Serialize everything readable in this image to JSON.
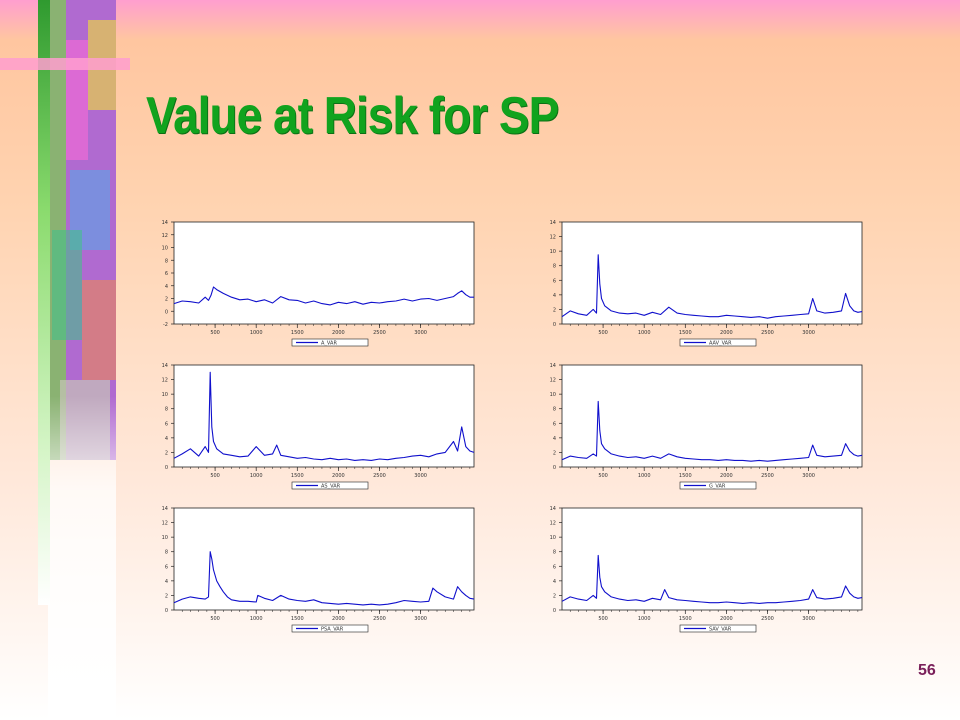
{
  "slide": {
    "title": "Value at Risk for SP",
    "page_number": "56"
  },
  "colors": {
    "title": "#11a31e",
    "series_line": "#1010cc",
    "page_number": "#7a1f5a"
  },
  "chart_data": [
    {
      "type": "line",
      "legend": "A_VAR",
      "legend_position": "bottom-center",
      "grid": false,
      "x_ticks": [
        500,
        1000,
        1500,
        2000,
        2500,
        3000
      ],
      "xlim": [
        0,
        3650
      ],
      "y_ticks": [
        -2,
        0,
        2,
        4,
        6,
        8,
        10,
        12,
        14
      ],
      "ylim": [
        -2,
        14
      ],
      "x": [
        0,
        100,
        200,
        300,
        380,
        420,
        450,
        480,
        520,
        600,
        700,
        800,
        900,
        1000,
        1100,
        1200,
        1300,
        1400,
        1500,
        1600,
        1700,
        1800,
        1900,
        2000,
        2100,
        2200,
        2300,
        2400,
        2500,
        2600,
        2700,
        2800,
        2900,
        3000,
        3100,
        3200,
        3300,
        3400,
        3450,
        3500,
        3550,
        3600,
        3650
      ],
      "y": [
        1.2,
        1.6,
        1.5,
        1.3,
        2.2,
        1.7,
        2.5,
        3.8,
        3.4,
        2.8,
        2.2,
        1.8,
        1.9,
        1.5,
        1.8,
        1.3,
        2.3,
        1.8,
        1.7,
        1.3,
        1.6,
        1.2,
        1.0,
        1.4,
        1.2,
        1.5,
        1.1,
        1.4,
        1.3,
        1.5,
        1.6,
        1.9,
        1.6,
        1.9,
        2.0,
        1.7,
        2.0,
        2.3,
        2.8,
        3.2,
        2.6,
        2.2,
        2.2
      ]
    },
    {
      "type": "line",
      "legend": "AAV_VAR",
      "legend_position": "bottom-center",
      "grid": false,
      "x_ticks": [
        500,
        1000,
        1500,
        2000,
        2500,
        3000
      ],
      "xlim": [
        0,
        3650
      ],
      "y_ticks": [
        0,
        2,
        4,
        6,
        8,
        10,
        12,
        14
      ],
      "ylim": [
        0,
        14
      ],
      "x": [
        0,
        100,
        200,
        300,
        380,
        420,
        440,
        460,
        480,
        520,
        600,
        700,
        800,
        900,
        1000,
        1100,
        1200,
        1300,
        1400,
        1500,
        1600,
        1700,
        1800,
        1900,
        2000,
        2100,
        2200,
        2300,
        2400,
        2500,
        2600,
        2700,
        2800,
        2900,
        3000,
        3050,
        3100,
        3200,
        3300,
        3400,
        3450,
        3500,
        3550,
        3600,
        3650
      ],
      "y": [
        1.0,
        1.8,
        1.4,
        1.2,
        2.0,
        1.5,
        9.5,
        5.5,
        3.5,
        2.5,
        1.8,
        1.5,
        1.4,
        1.5,
        1.2,
        1.6,
        1.3,
        2.3,
        1.5,
        1.3,
        1.2,
        1.1,
        1.0,
        1.0,
        1.2,
        1.1,
        1.0,
        0.9,
        1.0,
        0.8,
        1.0,
        1.1,
        1.2,
        1.3,
        1.4,
        3.5,
        1.8,
        1.5,
        1.6,
        1.8,
        4.2,
        2.5,
        1.8,
        1.6,
        1.7
      ]
    },
    {
      "type": "line",
      "legend": "AS_VAR",
      "legend_position": "bottom-center",
      "grid": false,
      "x_ticks": [
        500,
        1000,
        1500,
        2000,
        2500,
        3000
      ],
      "xlim": [
        0,
        3650
      ],
      "y_ticks": [
        0,
        2,
        4,
        6,
        8,
        10,
        12,
        14
      ],
      "ylim": [
        0,
        14
      ],
      "x": [
        0,
        100,
        200,
        300,
        380,
        420,
        440,
        460,
        480,
        520,
        600,
        700,
        800,
        900,
        1000,
        1100,
        1200,
        1250,
        1300,
        1400,
        1500,
        1600,
        1700,
        1800,
        1900,
        2000,
        2100,
        2200,
        2300,
        2400,
        2500,
        2600,
        2700,
        2800,
        2900,
        3000,
        3100,
        3200,
        3300,
        3400,
        3450,
        3500,
        3550,
        3600,
        3650
      ],
      "y": [
        1.2,
        1.8,
        2.5,
        1.5,
        2.8,
        2.0,
        13.0,
        5.5,
        3.5,
        2.5,
        1.8,
        1.6,
        1.4,
        1.5,
        2.8,
        1.6,
        1.8,
        3.0,
        1.6,
        1.4,
        1.2,
        1.3,
        1.1,
        1.0,
        1.2,
        1.0,
        1.1,
        0.9,
        1.0,
        0.9,
        1.1,
        1.0,
        1.2,
        1.3,
        1.5,
        1.6,
        1.4,
        1.8,
        2.0,
        3.5,
        2.2,
        5.5,
        2.8,
        2.2,
        2.0
      ]
    },
    {
      "type": "line",
      "legend": "G_VAR",
      "legend_position": "bottom-center",
      "grid": false,
      "x_ticks": [
        500,
        1000,
        1500,
        2000,
        2500,
        3000
      ],
      "xlim": [
        0,
        3650
      ],
      "y_ticks": [
        0,
        2,
        4,
        6,
        8,
        10,
        12,
        14
      ],
      "ylim": [
        0,
        14
      ],
      "x": [
        0,
        100,
        200,
        300,
        380,
        420,
        440,
        460,
        480,
        520,
        600,
        700,
        800,
        900,
        1000,
        1100,
        1200,
        1300,
        1400,
        1500,
        1600,
        1700,
        1800,
        1900,
        2000,
        2100,
        2200,
        2300,
        2400,
        2500,
        2600,
        2700,
        2800,
        2900,
        3000,
        3050,
        3100,
        3200,
        3300,
        3400,
        3450,
        3500,
        3550,
        3600,
        3650
      ],
      "y": [
        1.0,
        1.5,
        1.3,
        1.2,
        1.8,
        1.5,
        9.0,
        5.0,
        3.2,
        2.5,
        1.8,
        1.5,
        1.3,
        1.4,
        1.2,
        1.5,
        1.2,
        1.8,
        1.4,
        1.2,
        1.1,
        1.0,
        1.0,
        0.9,
        1.0,
        0.9,
        0.9,
        0.8,
        0.9,
        0.8,
        0.9,
        1.0,
        1.1,
        1.2,
        1.3,
        3.0,
        1.6,
        1.4,
        1.5,
        1.6,
        3.2,
        2.2,
        1.7,
        1.5,
        1.6
      ]
    },
    {
      "type": "line",
      "legend": "PSA_VAR",
      "legend_position": "bottom-center",
      "grid": false,
      "x_ticks": [
        500,
        1000,
        1500,
        2000,
        2500,
        3000
      ],
      "xlim": [
        0,
        3650
      ],
      "y_ticks": [
        0,
        2,
        4,
        6,
        8,
        10,
        12,
        14
      ],
      "ylim": [
        0,
        14
      ],
      "x": [
        0,
        100,
        200,
        300,
        380,
        420,
        440,
        460,
        480,
        520,
        560,
        600,
        650,
        700,
        800,
        900,
        1000,
        1020,
        1100,
        1200,
        1300,
        1400,
        1500,
        1600,
        1700,
        1800,
        1900,
        2000,
        2100,
        2200,
        2300,
        2400,
        2500,
        2600,
        2700,
        2800,
        2900,
        3000,
        3100,
        3150,
        3200,
        3300,
        3400,
        3450,
        3500,
        3550,
        3600,
        3650
      ],
      "y": [
        1.0,
        1.5,
        1.8,
        1.6,
        1.5,
        1.8,
        8.0,
        7.0,
        5.5,
        4.0,
        3.2,
        2.5,
        1.8,
        1.4,
        1.2,
        1.2,
        1.1,
        2.0,
        1.6,
        1.3,
        2.0,
        1.5,
        1.3,
        1.2,
        1.4,
        1.0,
        0.9,
        0.8,
        0.9,
        0.8,
        0.7,
        0.8,
        0.7,
        0.8,
        1.0,
        1.3,
        1.2,
        1.1,
        1.2,
        3.0,
        2.5,
        1.8,
        1.5,
        3.2,
        2.5,
        2.0,
        1.6,
        1.5
      ]
    },
    {
      "type": "line",
      "legend": "SAV_VAR",
      "legend_position": "bottom-center",
      "grid": false,
      "x_ticks": [
        500,
        1000,
        1500,
        2000,
        2500,
        3000
      ],
      "xlim": [
        0,
        3650
      ],
      "y_ticks": [
        0,
        2,
        4,
        6,
        8,
        10,
        12,
        14
      ],
      "ylim": [
        0,
        14
      ],
      "x": [
        0,
        100,
        200,
        300,
        380,
        420,
        440,
        460,
        480,
        520,
        600,
        700,
        800,
        900,
        1000,
        1100,
        1200,
        1250,
        1300,
        1400,
        1500,
        1600,
        1700,
        1800,
        1900,
        2000,
        2100,
        2200,
        2300,
        2400,
        2500,
        2600,
        2700,
        2800,
        2900,
        3000,
        3050,
        3100,
        3200,
        3300,
        3400,
        3450,
        3500,
        3550,
        3600,
        3650
      ],
      "y": [
        1.2,
        1.8,
        1.5,
        1.3,
        2.0,
        1.6,
        7.5,
        4.5,
        3.2,
        2.5,
        1.8,
        1.5,
        1.3,
        1.4,
        1.2,
        1.6,
        1.4,
        2.8,
        1.7,
        1.4,
        1.3,
        1.2,
        1.1,
        1.0,
        1.0,
        1.1,
        1.0,
        0.9,
        1.0,
        0.9,
        1.0,
        1.0,
        1.1,
        1.2,
        1.3,
        1.5,
        2.8,
        1.7,
        1.5,
        1.6,
        1.8,
        3.3,
        2.3,
        1.8,
        1.6,
        1.7
      ]
    }
  ]
}
